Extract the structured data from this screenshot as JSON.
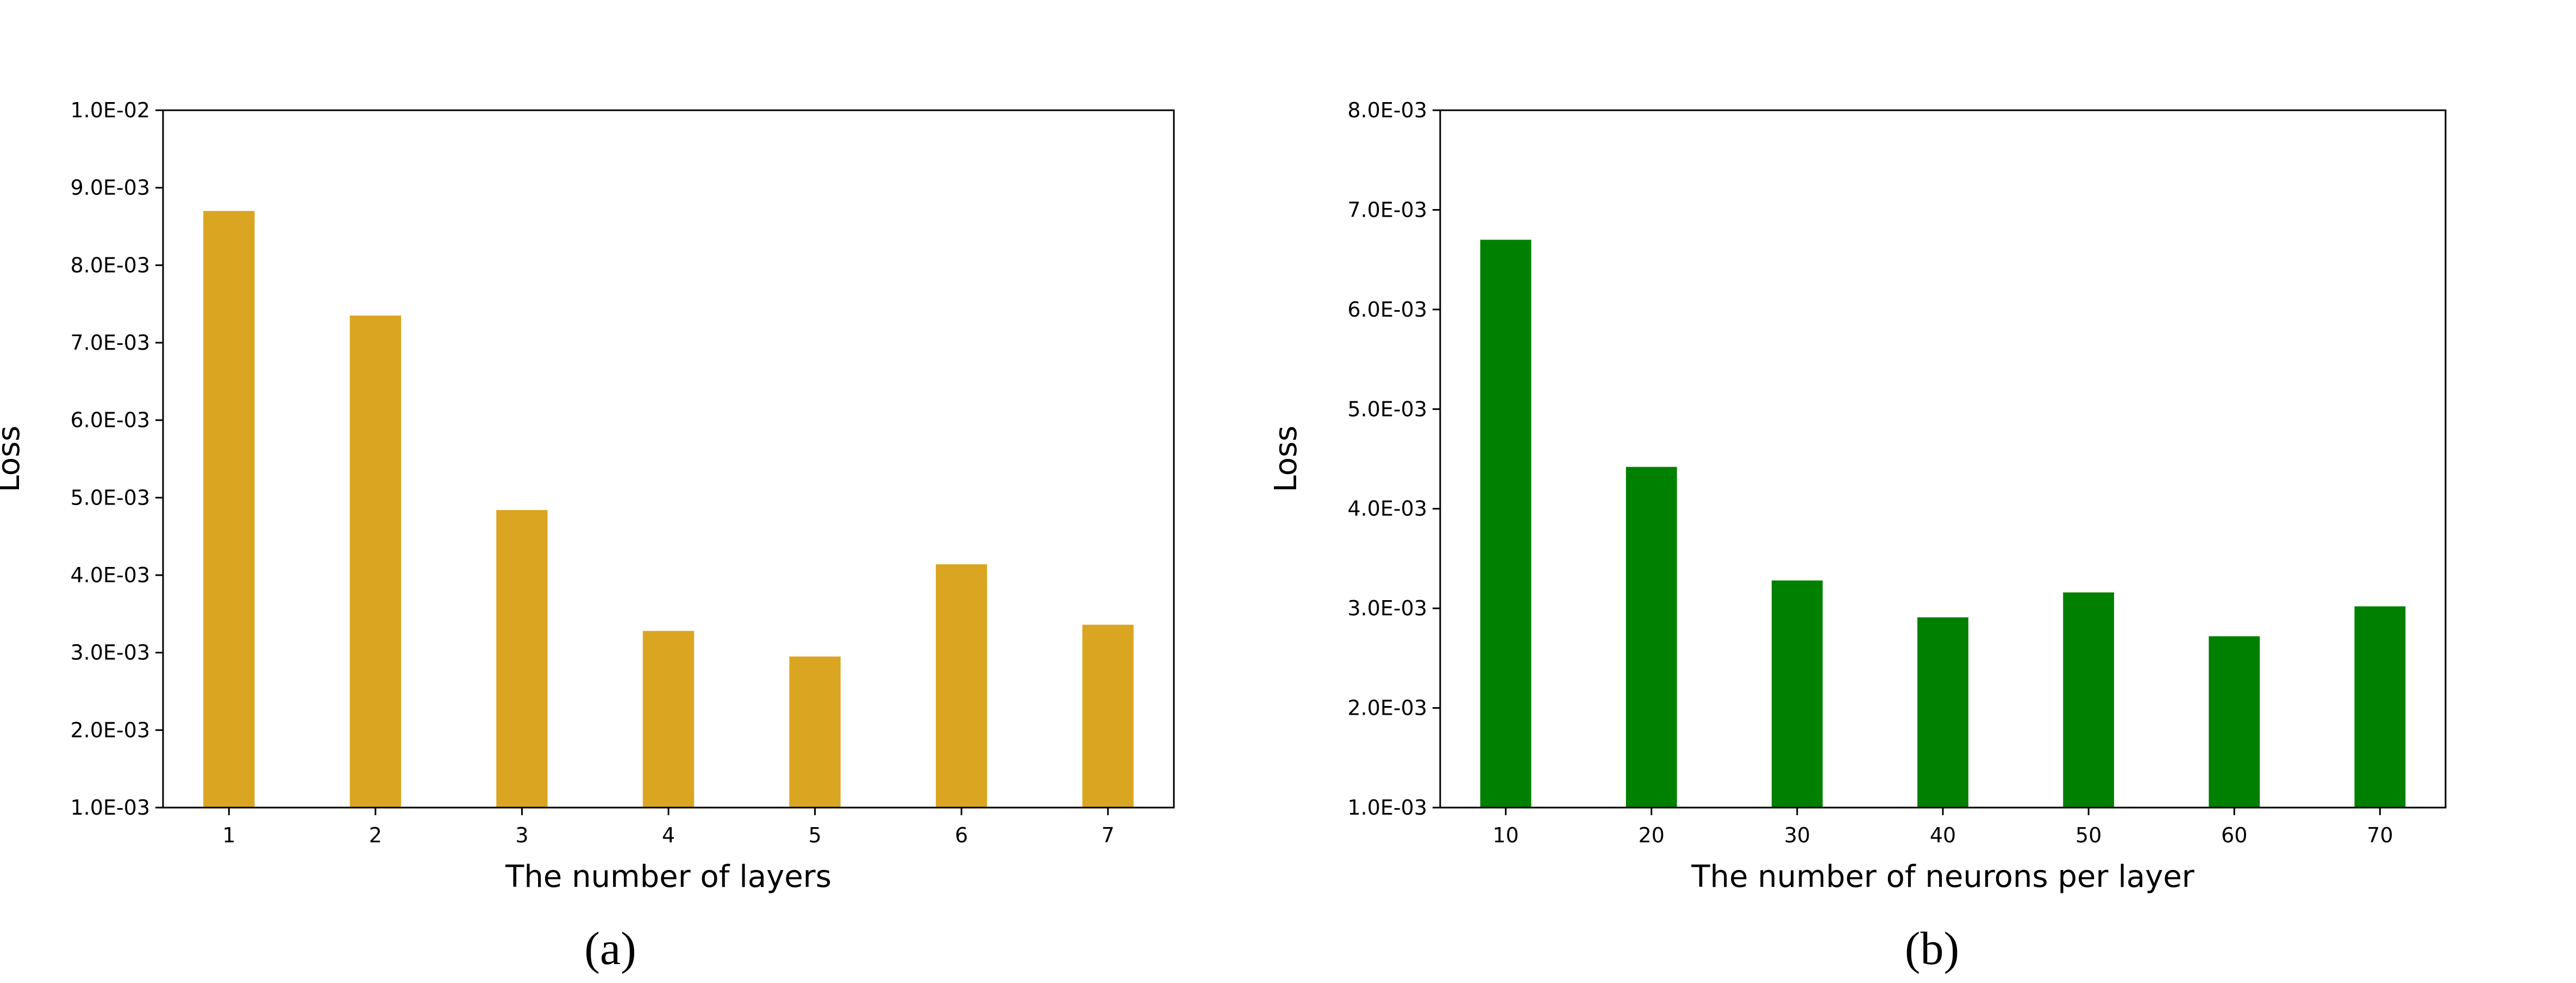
{
  "chart_data": [
    {
      "type": "bar",
      "categories": [
        "1",
        "2",
        "3",
        "4",
        "5",
        "6",
        "7"
      ],
      "values": [
        0.0087,
        0.00735,
        0.00484,
        0.00328,
        0.00295,
        0.00414,
        0.00336
      ],
      "xlabel": "The number of layers",
      "ylabel": "Loss",
      "ylim": [
        0.001,
        0.01
      ],
      "yticks": [
        "1.0E-03",
        "2.0E-03",
        "3.0E-03",
        "4.0E-03",
        "5.0E-03",
        "6.0E-03",
        "7.0E-03",
        "8.0E-03",
        "9.0E-03",
        "1.0E-02"
      ],
      "ytick_values": [
        0.001,
        0.002,
        0.003,
        0.004,
        0.005,
        0.006,
        0.007,
        0.008,
        0.009,
        0.01
      ],
      "color": "#DAA520",
      "caption": "(a)",
      "grid": false
    },
    {
      "type": "bar",
      "categories": [
        "10",
        "20",
        "30",
        "40",
        "50",
        "60",
        "70"
      ],
      "values": [
        0.0067,
        0.00442,
        0.00328,
        0.00291,
        0.00316,
        0.00272,
        0.00302
      ],
      "xlabel": "The number of neurons per layer",
      "ylabel": "Loss",
      "ylim": [
        0.001,
        0.008
      ],
      "yticks": [
        "1.0E-03",
        "2.0E-03",
        "3.0E-03",
        "4.0E-03",
        "5.0E-03",
        "6.0E-03",
        "7.0E-03",
        "8.0E-03"
      ],
      "ytick_values": [
        0.001,
        0.002,
        0.003,
        0.004,
        0.005,
        0.006,
        0.007,
        0.008
      ],
      "color": "#008000",
      "caption": "(b)",
      "grid": false
    }
  ]
}
